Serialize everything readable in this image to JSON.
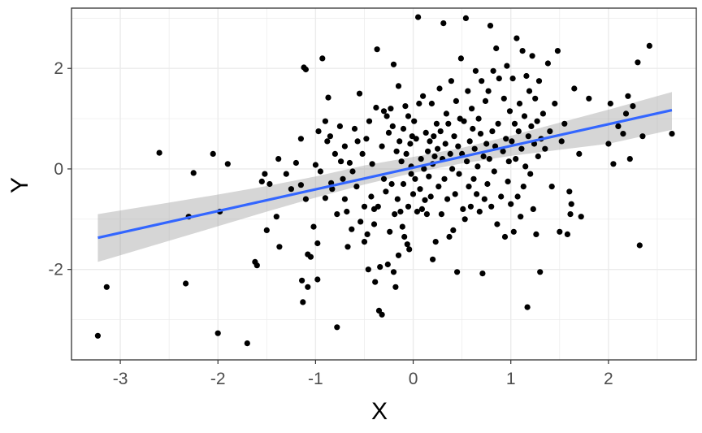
{
  "chart_data": {
    "type": "scatter",
    "title": "",
    "xlabel": "X",
    "ylabel": "Y",
    "xlim": [
      -3.5,
      2.9
    ],
    "ylim": [
      -3.8,
      3.2
    ],
    "xticks": [
      -3,
      -2,
      -1,
      0,
      1,
      2
    ],
    "xtick_labels": [
      "-3",
      "-2",
      "-1",
      "0",
      "1",
      "2"
    ],
    "yticks": [
      -2,
      0,
      2
    ],
    "ytick_labels": [
      "-2",
      "0",
      "2"
    ],
    "grid": true,
    "colors": {
      "points": "#000000",
      "line": "#3366FF",
      "band": "#999999",
      "grid": "#ebebeb",
      "panel_border": "#333333"
    },
    "points": [
      [
        -3.23,
        -3.32
      ],
      [
        -3.14,
        -2.35
      ],
      [
        -2.6,
        0.32
      ],
      [
        -2.33,
        -2.28
      ],
      [
        -2.3,
        -0.95
      ],
      [
        -2.25,
        -0.08
      ],
      [
        -2.05,
        0.3
      ],
      [
        -2.0,
        -3.27
      ],
      [
        -1.98,
        -0.85
      ],
      [
        -1.9,
        0.1
      ],
      [
        -1.7,
        -3.47
      ],
      [
        -1.62,
        -1.85
      ],
      [
        -1.6,
        -1.92
      ],
      [
        -1.55,
        -0.25
      ],
      [
        -1.52,
        -0.1
      ],
      [
        -1.5,
        -1.22
      ],
      [
        -1.47,
        -0.3
      ],
      [
        -1.4,
        -0.95
      ],
      [
        -1.38,
        0.2
      ],
      [
        -1.37,
        -1.55
      ],
      [
        -1.3,
        -0.1
      ],
      [
        -1.25,
        -0.4
      ],
      [
        -1.2,
        0.12
      ],
      [
        -1.15,
        0.6
      ],
      [
        -1.15,
        -0.32
      ],
      [
        -1.14,
        -2.22
      ],
      [
        -1.13,
        -2.65
      ],
      [
        -1.12,
        2.02
      ],
      [
        -1.1,
        1.98
      ],
      [
        -1.1,
        -0.6
      ],
      [
        -1.08,
        -2.35
      ],
      [
        -1.08,
        -1.7
      ],
      [
        -1.05,
        -1.75
      ],
      [
        -1.02,
        -1.15
      ],
      [
        -1.0,
        0.08
      ],
      [
        -0.98,
        -1.48
      ],
      [
        -0.98,
        -2.2
      ],
      [
        -0.97,
        0.75
      ],
      [
        -0.95,
        -0.05
      ],
      [
        -0.93,
        2.2
      ],
      [
        -0.9,
        0.95
      ],
      [
        -0.9,
        -0.58
      ],
      [
        -0.88,
        0.55
      ],
      [
        -0.87,
        1.42
      ],
      [
        -0.85,
        0.65
      ],
      [
        -0.84,
        -0.28
      ],
      [
        -0.83,
        -0.4
      ],
      [
        -0.8,
        0.3
      ],
      [
        -0.78,
        -0.9
      ],
      [
        -0.78,
        -3.15
      ],
      [
        -0.75,
        0.85
      ],
      [
        -0.74,
        0.15
      ],
      [
        -0.72,
        -0.2
      ],
      [
        -0.7,
        -0.6
      ],
      [
        -0.7,
        0.45
      ],
      [
        -0.68,
        -0.85
      ],
      [
        -0.67,
        -1.55
      ],
      [
        -0.65,
        0.12
      ],
      [
        -0.63,
        -1.2
      ],
      [
        -0.62,
        -0.05
      ],
      [
        -0.6,
        0.8
      ],
      [
        -0.58,
        -0.35
      ],
      [
        -0.57,
        0.55
      ],
      [
        -0.55,
        1.5
      ],
      [
        -0.54,
        -1.05
      ],
      [
        -0.52,
        0.3
      ],
      [
        -0.5,
        -1.45
      ],
      [
        -0.5,
        -0.75
      ],
      [
        -0.48,
        0.6
      ],
      [
        -0.47,
        -1.3
      ],
      [
        -0.46,
        -2.0
      ],
      [
        -0.45,
        0.95
      ],
      [
        -0.43,
        -0.55
      ],
      [
        -0.42,
        0.1
      ],
      [
        -0.4,
        -0.8
      ],
      [
        -0.4,
        -1.1
      ],
      [
        -0.39,
        -2.25
      ],
      [
        -0.38,
        1.22
      ],
      [
        -0.37,
        2.38
      ],
      [
        -0.36,
        -0.75
      ],
      [
        -0.35,
        -2.82
      ],
      [
        -0.34,
        -1.95
      ],
      [
        -0.32,
        -2.9
      ],
      [
        -0.32,
        0.45
      ],
      [
        -0.3,
        1.15
      ],
      [
        -0.3,
        -0.2
      ],
      [
        -0.28,
        -0.45
      ],
      [
        -0.27,
        1.05
      ],
      [
        -0.26,
        -1.9
      ],
      [
        -0.25,
        0.72
      ],
      [
        -0.24,
        -1.25
      ],
      [
        -0.23,
        1.2
      ],
      [
        -0.22,
        -0.3
      ],
      [
        -0.21,
        0.85
      ],
      [
        -0.2,
        -2.05
      ],
      [
        -0.2,
        2.08
      ],
      [
        -0.19,
        -0.9
      ],
      [
        -0.18,
        -2.35
      ],
      [
        -0.17,
        0.35
      ],
      [
        -0.16,
        -0.6
      ],
      [
        -0.15,
        1.65
      ],
      [
        -0.15,
        -1.72
      ],
      [
        -0.14,
        0.55
      ],
      [
        -0.13,
        -0.85
      ],
      [
        -0.12,
        0.15
      ],
      [
        -0.11,
        -1.15
      ],
      [
        -0.1,
        0.8
      ],
      [
        -0.1,
        -0.3
      ],
      [
        -0.09,
        -1.35
      ],
      [
        -0.08,
        1.25
      ],
      [
        -0.07,
        0.3
      ],
      [
        -0.06,
        -1.5
      ],
      [
        -0.05,
        1.05
      ],
      [
        -0.05,
        -0.75
      ],
      [
        -0.04,
        -1.6
      ],
      [
        -0.03,
        0.5
      ],
      [
        -0.02,
        -0.1
      ],
      [
        -0.02,
        0.05
      ],
      [
        -0.01,
        0.65
      ],
      [
        0.0,
        -0.5
      ],
      [
        0.01,
        0.95
      ],
      [
        0.02,
        -0.2
      ],
      [
        0.03,
        0.6
      ],
      [
        0.04,
        -0.85
      ],
      [
        0.05,
        3.02
      ],
      [
        0.06,
        1.3
      ],
      [
        0.07,
        -0.4
      ],
      [
        0.08,
        0.2
      ],
      [
        0.09,
        -0.8
      ],
      [
        0.1,
        1.45
      ],
      [
        0.11,
        0.0
      ],
      [
        0.12,
        -0.62
      ],
      [
        0.13,
        0.72
      ],
      [
        0.14,
        -0.9
      ],
      [
        0.15,
        0.35
      ],
      [
        0.16,
        -0.15
      ],
      [
        0.17,
        0.55
      ],
      [
        0.18,
        -0.55
      ],
      [
        0.19,
        1.3
      ],
      [
        0.2,
        0.1
      ],
      [
        0.2,
        -1.8
      ],
      [
        0.21,
        0.65
      ],
      [
        0.22,
        0.25
      ],
      [
        0.23,
        -1.45
      ],
      [
        0.24,
        0.9
      ],
      [
        0.25,
        0.4
      ],
      [
        0.26,
        -0.35
      ],
      [
        0.27,
        1.6
      ],
      [
        0.28,
        0.75
      ],
      [
        0.29,
        -0.9
      ],
      [
        0.3,
        0.2
      ],
      [
        0.31,
        2.9
      ],
      [
        0.32,
        -0.2
      ],
      [
        0.33,
        0.5
      ],
      [
        0.34,
        1.1
      ],
      [
        0.35,
        -0.6
      ],
      [
        0.36,
        0.9
      ],
      [
        0.37,
        -1.35
      ],
      [
        0.38,
        0.3
      ],
      [
        0.39,
        1.75
      ],
      [
        0.4,
        0.0
      ],
      [
        0.41,
        -1.22
      ],
      [
        0.42,
        0.65
      ],
      [
        0.43,
        -0.5
      ],
      [
        0.44,
        1.35
      ],
      [
        0.45,
        -2.05
      ],
      [
        0.46,
        0.45
      ],
      [
        0.47,
        -0.1
      ],
      [
        0.48,
        1.0
      ],
      [
        0.49,
        2.2
      ],
      [
        0.5,
        0.3
      ],
      [
        0.51,
        -0.8
      ],
      [
        0.52,
        0.95
      ],
      [
        0.53,
        -1.0
      ],
      [
        0.54,
        3.0
      ],
      [
        0.55,
        0.15
      ],
      [
        0.56,
        1.55
      ],
      [
        0.57,
        -0.35
      ],
      [
        0.58,
        0.55
      ],
      [
        0.59,
        -0.75
      ],
      [
        0.6,
        1.2
      ],
      [
        0.61,
        0.8
      ],
      [
        0.62,
        -0.2
      ],
      [
        0.63,
        0.4
      ],
      [
        0.64,
        1.95
      ],
      [
        0.65,
        -0.5
      ],
      [
        0.66,
        0.05
      ],
      [
        0.67,
        1.0
      ],
      [
        0.68,
        -0.85
      ],
      [
        0.69,
        0.7
      ],
      [
        0.7,
        1.75
      ],
      [
        0.71,
        -2.08
      ],
      [
        0.72,
        0.25
      ],
      [
        0.73,
        -0.6
      ],
      [
        0.74,
        1.35
      ],
      [
        0.75,
        0.5
      ],
      [
        0.76,
        -0.3
      ],
      [
        0.77,
        1.55
      ],
      [
        0.78,
        0.2
      ],
      [
        0.79,
        2.85
      ],
      [
        0.8,
        -0.75
      ],
      [
        0.81,
        0.75
      ],
      [
        0.82,
        1.95
      ],
      [
        0.83,
        -0.05
      ],
      [
        0.84,
        0.45
      ],
      [
        0.85,
        2.4
      ],
      [
        0.86,
        -1.1
      ],
      [
        0.87,
        0.9
      ],
      [
        0.88,
        1.8
      ],
      [
        0.9,
        -0.55
      ],
      [
        0.92,
        0.35
      ],
      [
        0.93,
        1.4
      ],
      [
        0.94,
        -1.35
      ],
      [
        0.95,
        0.6
      ],
      [
        0.96,
        2.05
      ],
      [
        0.97,
        -0.25
      ],
      [
        0.98,
        0.15
      ],
      [
        0.99,
        1.15
      ],
      [
        1.0,
        -0.7
      ],
      [
        1.01,
        0.55
      ],
      [
        1.02,
        1.8
      ],
      [
        1.03,
        -1.25
      ],
      [
        1.04,
        0.9
      ],
      [
        1.05,
        0.2
      ],
      [
        1.06,
        2.6
      ],
      [
        1.07,
        -0.55
      ],
      [
        1.08,
        0.75
      ],
      [
        1.09,
        1.3
      ],
      [
        1.1,
        -0.95
      ],
      [
        1.11,
        0.4
      ],
      [
        1.12,
        2.35
      ],
      [
        1.13,
        -0.35
      ],
      [
        1.14,
        1.05
      ],
      [
        1.15,
        0.05
      ],
      [
        1.16,
        1.85
      ],
      [
        1.17,
        -2.75
      ],
      [
        1.18,
        0.65
      ],
      [
        1.19,
        1.55
      ],
      [
        1.2,
        -0.1
      ],
      [
        1.21,
        0.85
      ],
      [
        1.22,
        2.25
      ],
      [
        1.23,
        -0.8
      ],
      [
        1.24,
        0.5
      ],
      [
        1.25,
        1.4
      ],
      [
        1.26,
        -1.3
      ],
      [
        1.27,
        0.95
      ],
      [
        1.28,
        0.25
      ],
      [
        1.29,
        1.75
      ],
      [
        1.3,
        -2.05
      ],
      [
        1.31,
        0.6
      ],
      [
        1.33,
        1.1
      ],
      [
        1.35,
        0.4
      ],
      [
        1.38,
        2.1
      ],
      [
        1.4,
        0.75
      ],
      [
        1.42,
        -0.35
      ],
      [
        1.45,
        1.3
      ],
      [
        1.48,
        2.35
      ],
      [
        1.5,
        -1.25
      ],
      [
        1.52,
        0.55
      ],
      [
        1.55,
        0.9
      ],
      [
        1.58,
        -1.3
      ],
      [
        1.6,
        -0.45
      ],
      [
        1.61,
        -0.9
      ],
      [
        1.62,
        -0.7
      ],
      [
        1.65,
        1.6
      ],
      [
        1.7,
        0.3
      ],
      [
        1.72,
        -0.95
      ],
      [
        1.8,
        1.4
      ],
      [
        2.0,
        0.5
      ],
      [
        2.02,
        1.3
      ],
      [
        2.05,
        0.1
      ],
      [
        2.1,
        0.85
      ],
      [
        2.15,
        0.7
      ],
      [
        2.18,
        1.1
      ],
      [
        2.2,
        1.45
      ],
      [
        2.22,
        0.2
      ],
      [
        2.25,
        1.25
      ],
      [
        2.3,
        2.12
      ],
      [
        2.32,
        -1.52
      ],
      [
        2.35,
        0.65
      ],
      [
        2.42,
        2.45
      ],
      [
        2.65,
        0.7
      ]
    ],
    "fit_line": {
      "x": [
        -3.23,
        2.65
      ],
      "y": [
        -1.37,
        1.17
      ]
    },
    "confidence_band": {
      "x": [
        -3.23,
        -2.5,
        -2.0,
        -1.5,
        -1.0,
        -0.5,
        0.0,
        0.5,
        1.0,
        1.5,
        2.0,
        2.65
      ],
      "lower": [
        -1.85,
        -1.43,
        -1.14,
        -0.85,
        -0.57,
        -0.31,
        -0.08,
        0.11,
        0.26,
        0.38,
        0.5,
        0.78
      ],
      "upper": [
        -0.9,
        -0.67,
        -0.51,
        -0.34,
        -0.15,
        0.07,
        0.24,
        0.42,
        0.66,
        0.92,
        1.18,
        1.53
      ]
    }
  }
}
